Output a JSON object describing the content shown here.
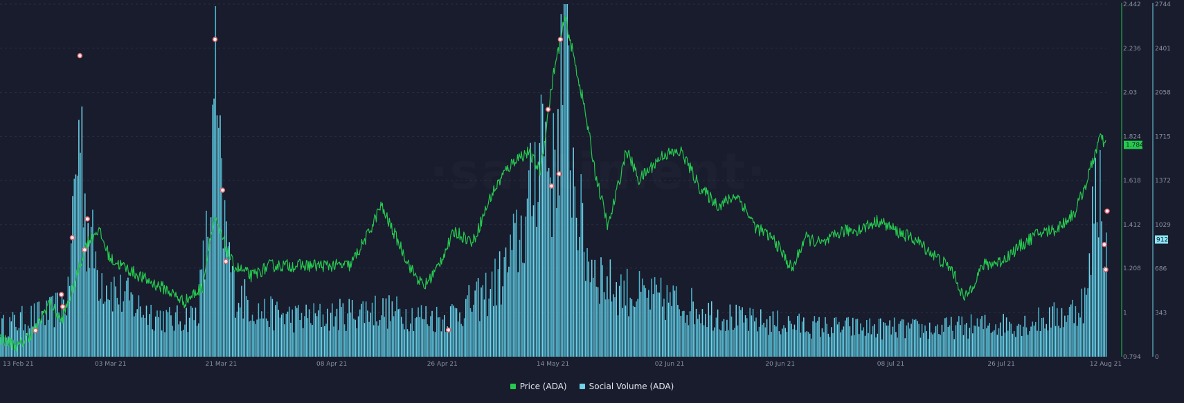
{
  "colors": {
    "background": "#181c2c",
    "price": "#26c950",
    "social": "#6fd3ea",
    "social_dark": "#4bb4cd",
    "grid": "#2a3042",
    "axis_text": "#8a90a3",
    "marker_fill": "#f3f3f6",
    "marker_ring": "#e66870",
    "price_tag_bg": "#26c950",
    "social_tag_bg": "#8ee2f4"
  },
  "watermark": "·santiment·",
  "legend": {
    "price_label": "Price (ADA)",
    "social_label": "Social Volume (ADA)"
  },
  "chart_data": {
    "type": "bar+line",
    "x_start": "2021-02-13",
    "x_end": "2021-08-12",
    "x_ticks": [
      "13 Feb 21",
      "03 Mar 21",
      "21 Mar 21",
      "08 Apr 21",
      "26 Apr 21",
      "14 May 21",
      "02 Jun 21",
      "20 Jun 21",
      "08 Jul 21",
      "26 Jul 21",
      "12 Aug 21"
    ],
    "price_axis": {
      "ticks": [
        "2.442",
        "2.236",
        "2.03",
        "1.824",
        "1.618",
        "1.412",
        "1.208",
        "1",
        "0.794"
      ],
      "range": [
        0.794,
        2.442
      ],
      "current_value": "1.784"
    },
    "social_axis": {
      "ticks": [
        "2744",
        "2401",
        "2058",
        "1715",
        "1372",
        "1029",
        "686",
        "343",
        "0"
      ],
      "range": [
        0,
        2744
      ],
      "current_value": "912"
    },
    "series": [
      {
        "name": "Price (ADA)",
        "type": "line",
        "keypoints": [
          [
            "2021-02-13",
            0.88
          ],
          [
            "2021-02-16",
            0.84
          ],
          [
            "2021-02-19",
            0.93
          ],
          [
            "2021-02-21",
            1.05
          ],
          [
            "2021-02-23",
            0.96
          ],
          [
            "2021-02-25",
            1.12
          ],
          [
            "2021-02-27",
            1.32
          ],
          [
            "2021-03-01",
            1.39
          ],
          [
            "2021-03-03",
            1.25
          ],
          [
            "2021-03-06",
            1.2
          ],
          [
            "2021-03-09",
            1.15
          ],
          [
            "2021-03-12",
            1.11
          ],
          [
            "2021-03-15",
            1.05
          ],
          [
            "2021-03-18",
            1.12
          ],
          [
            "2021-03-19",
            1.32
          ],
          [
            "2021-03-20",
            1.43
          ],
          [
            "2021-03-23",
            1.22
          ],
          [
            "2021-03-26",
            1.17
          ],
          [
            "2021-03-29",
            1.22
          ],
          [
            "2021-04-01",
            1.22
          ],
          [
            "2021-04-05",
            1.22
          ],
          [
            "2021-04-08",
            1.22
          ],
          [
            "2021-04-11",
            1.22
          ],
          [
            "2021-04-14",
            1.37
          ],
          [
            "2021-04-16",
            1.5
          ],
          [
            "2021-04-18",
            1.38
          ],
          [
            "2021-04-21",
            1.2
          ],
          [
            "2021-04-23",
            1.12
          ],
          [
            "2021-04-25",
            1.2
          ],
          [
            "2021-04-28",
            1.38
          ],
          [
            "2021-05-01",
            1.33
          ],
          [
            "2021-05-04",
            1.55
          ],
          [
            "2021-05-06",
            1.65
          ],
          [
            "2021-05-08",
            1.72
          ],
          [
            "2021-05-10",
            1.75
          ],
          [
            "2021-05-12",
            1.66
          ],
          [
            "2021-05-14",
            2.1
          ],
          [
            "2021-05-16",
            2.38
          ],
          [
            "2021-05-19",
            1.98
          ],
          [
            "2021-05-21",
            1.64
          ],
          [
            "2021-05-23",
            1.4
          ],
          [
            "2021-05-26",
            1.76
          ],
          [
            "2021-05-28",
            1.62
          ],
          [
            "2021-06-01",
            1.74
          ],
          [
            "2021-06-04",
            1.75
          ],
          [
            "2021-06-07",
            1.58
          ],
          [
            "2021-06-10",
            1.5
          ],
          [
            "2021-06-13",
            1.55
          ],
          [
            "2021-06-16",
            1.4
          ],
          [
            "2021-06-19",
            1.34
          ],
          [
            "2021-06-22",
            1.2
          ],
          [
            "2021-06-24",
            1.35
          ],
          [
            "2021-06-27",
            1.32
          ],
          [
            "2021-06-30",
            1.38
          ],
          [
            "2021-07-03",
            1.39
          ],
          [
            "2021-07-06",
            1.43
          ],
          [
            "2021-07-09",
            1.38
          ],
          [
            "2021-07-12",
            1.34
          ],
          [
            "2021-07-15",
            1.27
          ],
          [
            "2021-07-18",
            1.2
          ],
          [
            "2021-07-20",
            1.06
          ],
          [
            "2021-07-23",
            1.22
          ],
          [
            "2021-07-26",
            1.24
          ],
          [
            "2021-07-29",
            1.31
          ],
          [
            "2021-08-01",
            1.37
          ],
          [
            "2021-08-04",
            1.39
          ],
          [
            "2021-08-07",
            1.47
          ],
          [
            "2021-08-09",
            1.62
          ],
          [
            "2021-08-11",
            1.82
          ],
          [
            "2021-08-12",
            1.78
          ]
        ]
      },
      {
        "name": "Social Volume (ADA)",
        "type": "bar",
        "keypoints": [
          [
            "2021-02-13",
            250
          ],
          [
            "2021-02-18",
            330
          ],
          [
            "2021-02-21",
            360
          ],
          [
            "2021-02-24",
            480
          ],
          [
            "2021-02-25",
            1380
          ],
          [
            "2021-02-26",
            2000
          ],
          [
            "2021-02-27",
            1120
          ],
          [
            "2021-03-01",
            700
          ],
          [
            "2021-03-04",
            540
          ],
          [
            "2021-03-08",
            400
          ],
          [
            "2021-03-13",
            300
          ],
          [
            "2021-03-17",
            360
          ],
          [
            "2021-03-19",
            1130
          ],
          [
            "2021-03-20",
            2240
          ],
          [
            "2021-03-21",
            1260
          ],
          [
            "2021-03-23",
            560
          ],
          [
            "2021-03-27",
            380
          ],
          [
            "2021-04-02",
            330
          ],
          [
            "2021-04-08",
            340
          ],
          [
            "2021-04-14",
            400
          ],
          [
            "2021-04-20",
            360
          ],
          [
            "2021-04-26",
            320
          ],
          [
            "2021-05-02",
            480
          ],
          [
            "2021-05-06",
            700
          ],
          [
            "2021-05-10",
            1200
          ],
          [
            "2021-05-12",
            2000
          ],
          [
            "2021-05-14",
            1500
          ],
          [
            "2021-05-16",
            2740
          ],
          [
            "2021-05-17",
            1700
          ],
          [
            "2021-05-19",
            900
          ],
          [
            "2021-05-23",
            600
          ],
          [
            "2021-05-29",
            500
          ],
          [
            "2021-06-03",
            460
          ],
          [
            "2021-06-08",
            380
          ],
          [
            "2021-06-14",
            300
          ],
          [
            "2021-06-20",
            280
          ],
          [
            "2021-06-26",
            250
          ],
          [
            "2021-07-05",
            240
          ],
          [
            "2021-07-14",
            230
          ],
          [
            "2021-07-22",
            260
          ],
          [
            "2021-07-30",
            280
          ],
          [
            "2021-08-06",
            360
          ],
          [
            "2021-08-09",
            500
          ],
          [
            "2021-08-10",
            1300
          ],
          [
            "2021-08-11",
            1450
          ],
          [
            "2021-08-12",
            912
          ]
        ]
      }
    ],
    "event_markers": [
      "2021-02-19",
      "2021-02-23",
      "2021-02-23",
      "2021-02-25",
      "2021-02-26",
      "2021-02-27",
      "2021-02-27",
      "2021-03-20",
      "2021-03-21",
      "2021-03-22",
      "2021-04-27",
      "2021-05-13",
      "2021-05-14",
      "2021-05-15",
      "2021-05-15",
      "2021-08-12",
      "2021-08-12",
      "2021-08-12"
    ],
    "xlabel": "",
    "ylabel": "",
    "grid": true,
    "legend_position": "bottom-center"
  }
}
